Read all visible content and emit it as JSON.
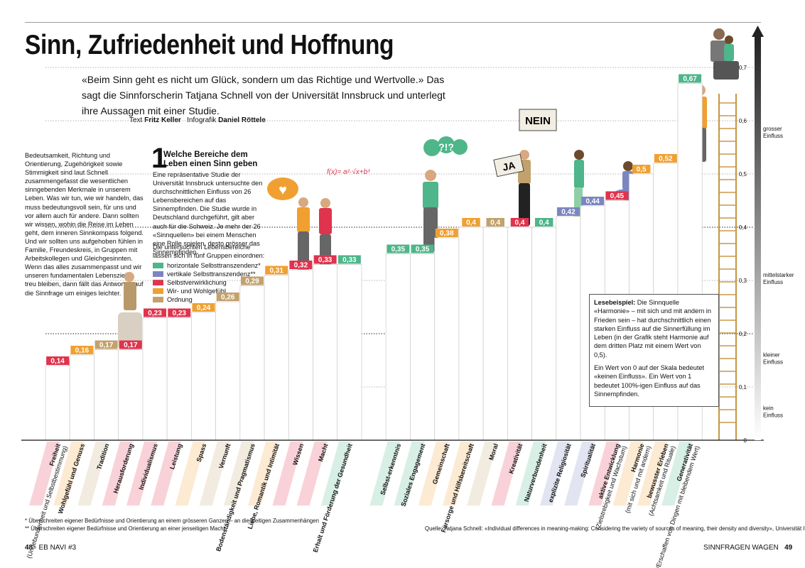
{
  "title": "Sinn, Zufriedenheit und Hoffnung",
  "intro": "«Beim Sinn geht es nicht um Glück, sondern um das Richtige und Wertvolle.» Das sagt die Sinnforscherin Tatjana Schnell von der Universität Innsbruck und unterlegt ihre Aussagen mit einer Studie.",
  "credits": {
    "text_label": "Text",
    "text_author": "Fritz Keller",
    "graphic_label": "Infografik",
    "graphic_author": "Daniel Röttele"
  },
  "body_text": "Bedeutsamkeit, Richtung und Orientierung, Zugehörigkeit sowie Stimmigkeit sind laut Schnell zusammengefasst die wesentlichen sinngebenden Merkmale in unserem Leben. Was wir tun, wie wir handeln, das muss bedeutungsvoll sein, für uns und vor allem auch für andere. Dann sollten wir wissen, wohin die Reise im Leben geht, dem inneren Sinnkompass folgend. Und wir sollten uns aufgehoben fühlen in Familie, Freundeskreis, in Gruppen mit Arbeitskollegen und Gleichgesinnten. Wenn das alles zusammenpasst und wir unseren fundamentalen Lebenszielen treu bleiben, dann fällt das Antworten auf die Sinnfrage um einiges leichter.",
  "section1": {
    "number": "1",
    "title": "Welche Bereiche dem Leben einen Sinn geben",
    "text": "Eine repräsentative Studie der Universität Innsbruck untersuchte den durchschnittlichen Einfluss von 26 Lebensbereichen auf das Sinnempfinden. Die Studie wurde in Deutschland durchgeführt, gilt aber auch für die Schweiz. Je mehr der 26 «Sinnquellen» bei einem Menschen eine Rolle spielen, desto grösser das Sinnempfinden.",
    "groups_intro": "Die untersuchten Lebensbereiche lassen sich in fünf Gruppen einordnen:"
  },
  "legend": [
    {
      "label": "horizontale Selbsttranszendenz*",
      "color": "#4fb58a"
    },
    {
      "label": "vertikale Selbsttranszendenz**",
      "color": "#7b86c0"
    },
    {
      "label": "Selbstverwirklichung",
      "color": "#e0334d"
    },
    {
      "label": "Wir- und Wohlgefühl",
      "color": "#f0a030"
    },
    {
      "label": "Ordnung",
      "color": "#c2a26c"
    }
  ],
  "lesebeispiel": {
    "heading": "Lesebeispiel:",
    "p1": "Die Sinnquelle «Harmonie» – mit sich und mit andern in Frieden sein – hat durchschnittlich einen starken Einfluss auf die Sinnerfüllung im Leben (in der Grafik steht Harmonie auf dem dritten Platz mit einem Wert von 0,5).",
    "p2": "Ein Wert von 0 auf der Skala bedeutet «keinen Einfluss». Ein Wert von 1 bedeutet 100%-igen Einfluss auf das Sinnempfinden."
  },
  "illustration": {
    "bubble_heart": "♥",
    "sign_nein": "NEIN",
    "sign_ja": "JA",
    "bubble_question": "?!?",
    "formula": "f(x)= a²·√x+b³"
  },
  "footnotes": [
    "* Überschreiten eigener Bedürfnisse und Orientierung an einem grösseren Ganzen – an diesseitigen Zusammenhängen",
    "** Überschreiten eigener Bedürfnisse und Orientierung an einer jenseitigen Macht"
  ],
  "source": "Quelle: Tatjana Schnell: «Individual differences in meaning-making: Considering the variety of sources of meaning, their density and diversity», Universität Innsbruck",
  "page_left": {
    "number": "48",
    "label": "EB NAVI #3"
  },
  "page_right": {
    "number": "49",
    "label": "SINNFRAGEN WAGEN"
  },
  "colors": {
    "horizontal": "#4fb58a",
    "vertikal": "#7b86c0",
    "selbst": "#e0334d",
    "wir": "#f0a030",
    "ordnung": "#c2a26c",
    "ladder": "#d9b36a"
  },
  "chart_data": {
    "type": "bar",
    "title": "",
    "xlabel": "",
    "ylabel": "",
    "ylim": [
      0,
      0.75
    ],
    "yticks": [
      "0",
      "0,1",
      "0,2",
      "0,3",
      "0,4",
      "0,5",
      "0,6",
      "0,7"
    ],
    "y_bands": [
      {
        "label": "kein Einfluss",
        "from": 0,
        "to": 0.1
      },
      {
        "label": "kleiner Einfluss",
        "from": 0.1,
        "to": 0.2
      },
      {
        "label": "mittelstarker Einfluss",
        "from": 0.2,
        "to": 0.4
      },
      {
        "label": "grosser Einfluss",
        "from": 0.4,
        "to": 0.75
      }
    ],
    "categories": [
      {
        "name": "Freiheit",
        "sub": "(Ungebundenheit und Selbstbestimmung)",
        "value": 0.14,
        "label": "0,14",
        "group": "selbst"
      },
      {
        "name": "Wohlgefühl und Genuss",
        "sub": "",
        "value": 0.16,
        "label": "0,16",
        "group": "wir"
      },
      {
        "name": "Tradition",
        "sub": "",
        "value": 0.17,
        "label": "0,17",
        "group": "ordnung"
      },
      {
        "name": "Herausforderung",
        "sub": "",
        "value": 0.17,
        "label": "0,17",
        "group": "selbst"
      },
      {
        "name": "Individualismus",
        "sub": "",
        "value": 0.23,
        "label": "0,23",
        "group": "selbst"
      },
      {
        "name": "Leistung",
        "sub": "",
        "value": 0.23,
        "label": "0,23",
        "group": "selbst"
      },
      {
        "name": "Spass",
        "sub": "",
        "value": 0.24,
        "label": "0,24",
        "group": "wir"
      },
      {
        "name": "Vernunft",
        "sub": "",
        "value": 0.26,
        "label": "0,26",
        "group": "ordnung"
      },
      {
        "name": "Bodenständigkeit und Pragmatismus",
        "sub": "",
        "value": 0.29,
        "label": "0,29",
        "group": "ordnung"
      },
      {
        "name": "Liebe, Romantik und Intimität",
        "sub": "",
        "value": 0.31,
        "label": "0,31",
        "group": "wir"
      },
      {
        "name": "Wissen",
        "sub": "",
        "value": 0.32,
        "label": "0,32",
        "group": "selbst"
      },
      {
        "name": "Macht",
        "sub": "",
        "value": 0.33,
        "label": "0,33",
        "group": "selbst"
      },
      {
        "name": "Erhalt und Förderung der Gesundheit",
        "sub": "",
        "value": 0.33,
        "label": "0,33",
        "group": "horizontal"
      },
      {
        "name": "Selbst-erkenntnis",
        "sub": "",
        "value": 0.35,
        "label": "0,35",
        "group": "horizontal"
      },
      {
        "name": "Soziales Engagement",
        "sub": "",
        "value": 0.35,
        "label": "0,35",
        "group": "horizontal"
      },
      {
        "name": "Gemeinschaft",
        "sub": "",
        "value": 0.38,
        "label": "0,38",
        "group": "wir"
      },
      {
        "name": "Fürsorge und Hilfsbereitschaft",
        "sub": "",
        "value": 0.4,
        "label": "0,4",
        "group": "wir"
      },
      {
        "name": "Moral",
        "sub": "",
        "value": 0.4,
        "label": "0,4",
        "group": "ordnung"
      },
      {
        "name": "Kreativität",
        "sub": "",
        "value": 0.4,
        "label": "0,4",
        "group": "selbst"
      },
      {
        "name": "Naturverbundenheit",
        "sub": "",
        "value": 0.4,
        "label": "0,4",
        "group": "horizontal"
      },
      {
        "name": "explizite Religiosität",
        "sub": "",
        "value": 0.42,
        "label": "0,42",
        "group": "vertikal"
      },
      {
        "name": "Spiritualität",
        "sub": "",
        "value": 0.44,
        "label": "0,44",
        "group": "vertikal"
      },
      {
        "name": "aktive Entwicklung",
        "sub": "(Zielstrebigkeit und Wachstum)",
        "value": 0.45,
        "label": "0,45",
        "group": "selbst"
      },
      {
        "name": "Harmonie",
        "sub": "(mit sich und mit andern)",
        "value": 0.5,
        "label": "0,5",
        "group": "wir"
      },
      {
        "name": "bewusster Erleben",
        "sub": "(Achtsamkeit und Rituale)",
        "value": 0.52,
        "label": "0,52",
        "group": "wir"
      },
      {
        "name": "Generativität",
        "sub": "(Tun/Erschaffen von Dingen mit bleibendem Wert)",
        "value": 0.67,
        "label": "0,67",
        "group": "horizontal"
      }
    ]
  }
}
